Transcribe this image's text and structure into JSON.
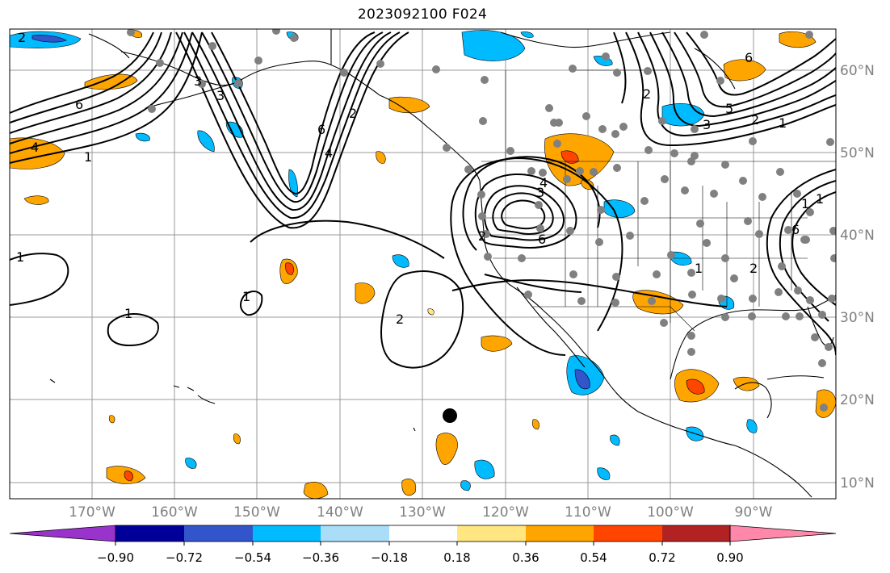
{
  "title": "2023092100 F024",
  "lon_labels": [
    "170°W",
    "160°W",
    "150°W",
    "140°W",
    "130°W",
    "120°W",
    "110°W",
    "100°W",
    "90°W"
  ],
  "lat_labels": [
    "60°N",
    "50°N",
    "40°N",
    "30°N",
    "20°N",
    "10°N"
  ],
  "colorbar": {
    "tick_labels": [
      "−0.90",
      "−0.72",
      "−0.54",
      "−0.36",
      "−0.18",
      "0.18",
      "0.36",
      "0.54",
      "0.72",
      "0.90"
    ],
    "colors": [
      "#9933cc",
      "#000099",
      "#3355cc",
      "#00bbff",
      "#aaddf8",
      "#ffffff",
      "#ffe680",
      "#ffa500",
      "#ff4500",
      "#b22222",
      "#ff88aa"
    ]
  },
  "contour_labels": [
    "2",
    "6",
    "4",
    "1",
    "1",
    "2",
    "3",
    "6",
    "4",
    "2",
    "2",
    "3",
    "4",
    "6",
    "3",
    "1",
    "1",
    "1",
    "2",
    "6",
    "2",
    "1",
    "6",
    "3",
    "5",
    "2",
    "1",
    "1"
  ],
  "shading_colors": {
    "orange": "#ffa500",
    "red": "#ff4500",
    "cyan": "#00bbff",
    "blue": "#3355cc",
    "yellow": "#ffe680"
  }
}
